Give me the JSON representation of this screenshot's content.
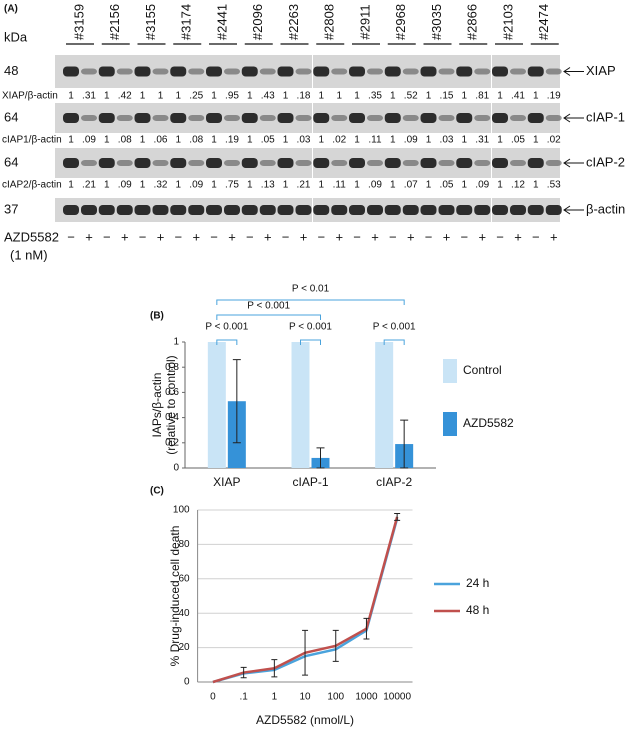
{
  "blot": {
    "label": "(A)",
    "unit_label": "kDa",
    "samples": [
      "#3159",
      "#2156",
      "#3155",
      "#3174",
      "#2441",
      "#2096",
      "#2263",
      "#2808",
      "#2911",
      "#2968",
      "#3035",
      "#2866",
      "#2103",
      "#2474"
    ],
    "rows": [
      {
        "marker": "48",
        "name": "XIAP",
        "ratio_label": "XIAP/β-actin",
        "ratios": [
          "1",
          ".31",
          "1",
          ".42",
          "1",
          "1",
          "1",
          ".25",
          "1",
          ".95",
          "1",
          ".43",
          "1",
          ".18",
          "1",
          "1",
          "1",
          ".35",
          "1",
          ".52",
          "1",
          ".15",
          "1",
          ".81",
          "1",
          ".41",
          "1",
          ".19"
        ]
      },
      {
        "marker": "64",
        "name": "cIAP-1",
        "ratio_label": "cIAP1/β-actin",
        "ratios": [
          "1",
          ".09",
          "1",
          ".08",
          "1",
          ".06",
          "1",
          ".08",
          "1",
          ".19",
          "1",
          ".05",
          "1",
          ".03",
          "1",
          ".02",
          "1",
          ".11",
          "1",
          ".09",
          "1",
          ".03",
          "1",
          ".31",
          "1",
          ".05",
          "1",
          ".02"
        ]
      },
      {
        "marker": "64",
        "name": "cIAP-2",
        "ratio_label": "cIAP2/β-actin",
        "ratios": [
          "1",
          ".21",
          "1",
          ".09",
          "1",
          ".32",
          "1",
          ".09",
          "1",
          ".75",
          "1",
          ".13",
          "1",
          ".21",
          "1",
          ".11",
          "1",
          ".09",
          "1",
          ".07",
          "1",
          ".05",
          "1",
          ".09",
          "1",
          ".12",
          "1",
          ".53"
        ]
      },
      {
        "marker": "37",
        "name": "β-actin"
      }
    ],
    "treatment": "AZD5582",
    "dose": "(1 nM)",
    "lane_signs": [
      "−",
      "+"
    ]
  },
  "chart_data": [
    {
      "type": "bar",
      "label": "(B)",
      "ylabel_lines": [
        "IAPs/β-actin",
        "(relative to control)"
      ],
      "categories": [
        "XIAP",
        "cIAP-1",
        "cIAP-2"
      ],
      "series": [
        {
          "name": "Control",
          "color": "#c9e4f6",
          "values": [
            1,
            1,
            1
          ]
        },
        {
          "name": "AZD5582",
          "color": "#3592d8",
          "values": [
            0.53,
            0.08,
            0.19
          ],
          "errors": [
            0.33,
            0.08,
            0.19
          ]
        }
      ],
      "ylim": [
        0,
        1
      ],
      "yticks": [
        0,
        0.2,
        0.4,
        0.6,
        0.8,
        1
      ],
      "annotations": [
        "P < 0.01",
        "P < 0.001",
        "P < 0.001",
        "P < 0.001",
        "P < 0.001"
      ]
    },
    {
      "type": "line",
      "label": "(C)",
      "ylabel": "% Drug-induced  cell death",
      "xlabel": "AZD5582  (nmol/L)",
      "categories": [
        "0",
        ".1",
        "1",
        "10",
        "100",
        "1000",
        "10000"
      ],
      "series": [
        {
          "name": "24 h",
          "color": "#4aa3dc",
          "values": [
            0,
            5,
            7,
            15,
            19,
            30,
            95
          ]
        },
        {
          "name": "48 h",
          "color": "#c0504d",
          "values": [
            0,
            5.5,
            8,
            17,
            21,
            31,
            96
          ],
          "errors": [
            null,
            3,
            5,
            13,
            9,
            6,
            2
          ]
        }
      ],
      "ylim": [
        0,
        100
      ],
      "yticks": [
        0,
        20,
        40,
        60,
        80,
        100
      ],
      "grid": true
    }
  ]
}
